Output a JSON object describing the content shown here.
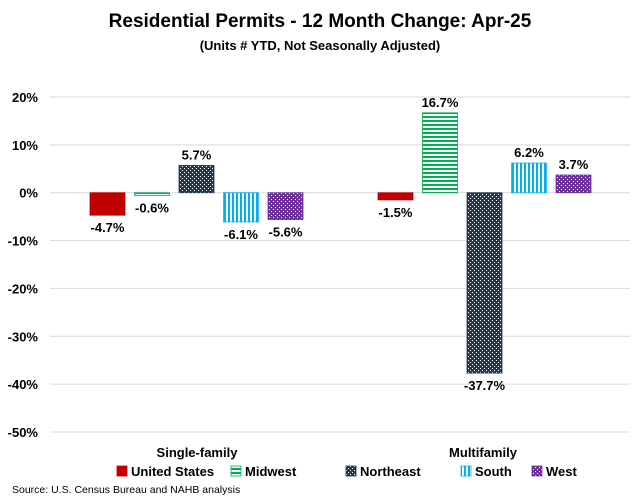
{
  "chart_data": {
    "type": "bar",
    "title": "Residential Permits - 12 Month Change:  Apr-25",
    "subtitle": "(Units # YTD, Not Seasonally Adjusted)",
    "categories": [
      "Single-family",
      "Multifamily"
    ],
    "series": [
      {
        "name": "United States",
        "values": [
          -4.7,
          -1.5
        ],
        "labels": [
          "-4.7%",
          "-1.5%"
        ],
        "color": "#C00000",
        "pattern": "solid"
      },
      {
        "name": "Midwest",
        "values": [
          -0.6,
          16.7
        ],
        "labels": [
          "-0.6%",
          "16.7%"
        ],
        "color": "#00B050",
        "pattern": "horizontal-stripes"
      },
      {
        "name": "Northeast",
        "values": [
          5.7,
          -37.7
        ],
        "labels": [
          "5.7%",
          "-37.7%"
        ],
        "color": "#1F3864",
        "pattern": "dots-on-dark"
      },
      {
        "name": "South",
        "values": [
          -6.1,
          6.2
        ],
        "labels": [
          "-6.1%",
          "6.2%"
        ],
        "color": "#00B0F0",
        "pattern": "vertical-stripes"
      },
      {
        "name": "West",
        "values": [
          -5.6,
          3.7
        ],
        "labels": [
          "-5.6%",
          "3.7%"
        ],
        "color": "#7030A0",
        "pattern": "dots-on-dark"
      }
    ],
    "ylim": [
      -50,
      20
    ],
    "yticks": [
      20,
      10,
      0,
      -10,
      -20,
      -30,
      -40,
      -50
    ],
    "ytick_labels": [
      "20%",
      "10%",
      "0%",
      "-10%",
      "-20%",
      "-30%",
      "-40%",
      "-50%"
    ],
    "grid": true,
    "legend": "bottom",
    "source": "Source: U.S. Census Bureau and NAHB analysis"
  }
}
